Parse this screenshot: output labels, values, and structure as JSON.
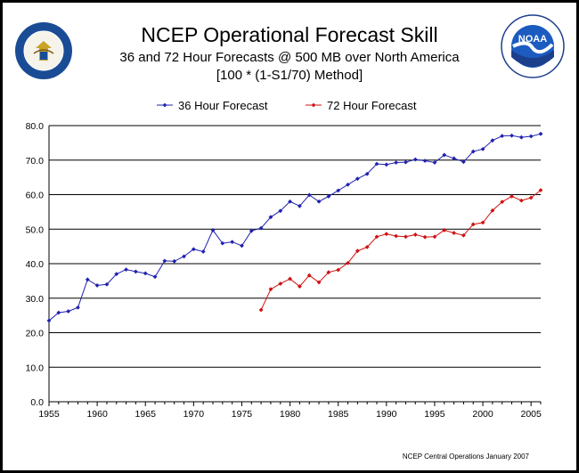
{
  "header": {
    "title": "NCEP Operational Forecast Skill",
    "subtitle": "36 and 72 Hour Forecasts @ 500 MB over North America",
    "method": "[100 * (1-S1/70) Method]"
  },
  "logos": {
    "left_text": "DEPARTMENT OF COMMERCE · UNITED STATES OF AMERICA",
    "left_icon": "commerce-seal-icon",
    "right_text": "NATIONAL OCEANIC AND ATMOSPHERIC ADMINISTRATION · U.S. DEPARTMENT OF COMMERCE",
    "right_abbrev": "NOAA",
    "right_icon": "noaa-logo-icon"
  },
  "footer": {
    "credit": "NCEP Central Operations January 2007"
  },
  "colors": {
    "series_36": "#2020b0",
    "series_72": "#d01010",
    "grid": "#000000"
  },
  "chart_data": {
    "type": "line",
    "title": "NCEP Operational Forecast Skill",
    "xlabel": "",
    "ylabel": "",
    "xlim": [
      1955,
      2006
    ],
    "ylim": [
      0,
      80
    ],
    "x_ticks": [
      "1955",
      "1960",
      "1965",
      "1970",
      "1975",
      "1980",
      "1985",
      "1990",
      "1995",
      "2000",
      "2005"
    ],
    "y_ticks": [
      "0.0",
      "10.0",
      "20.0",
      "30.0",
      "40.0",
      "50.0",
      "60.0",
      "70.0",
      "80.0"
    ],
    "grid": "horizontal",
    "legend_position": "top",
    "series": [
      {
        "name": "36 Hour Forecast",
        "color": "#2020b0",
        "x": [
          1955,
          1956,
          1957,
          1958,
          1959,
          1960,
          1961,
          1962,
          1963,
          1964,
          1965,
          1966,
          1967,
          1968,
          1969,
          1970,
          1971,
          1972,
          1973,
          1974,
          1975,
          1976,
          1977,
          1978,
          1979,
          1980,
          1981,
          1982,
          1983,
          1984,
          1985,
          1986,
          1987,
          1988,
          1989,
          1990,
          1991,
          1992,
          1993,
          1994,
          1995,
          1996,
          1997,
          1998,
          1999,
          2000,
          2001,
          2002,
          2003,
          2004,
          2005,
          2006
        ],
        "y": [
          23.5,
          25.8,
          26.2,
          27.3,
          35.4,
          33.7,
          34.0,
          37.0,
          38.3,
          37.7,
          37.2,
          36.2,
          40.8,
          40.7,
          42.1,
          44.2,
          43.5,
          49.7,
          45.9,
          46.3,
          45.2,
          49.5,
          50.3,
          53.5,
          55.3,
          58.0,
          56.7,
          59.9,
          58.0,
          59.5,
          61.2,
          62.9,
          64.6,
          66.0,
          68.9,
          68.7,
          69.3,
          69.4,
          70.2,
          69.8,
          69.3,
          71.5,
          70.5,
          69.5,
          72.5,
          73.2,
          75.7,
          77.0,
          77.1,
          76.6,
          76.9,
          77.6
        ]
      },
      {
        "name": "72 Hour Forecast",
        "color": "#d01010",
        "x": [
          1977,
          1978,
          1979,
          1980,
          1981,
          1982,
          1983,
          1984,
          1985,
          1986,
          1987,
          1988,
          1989,
          1990,
          1991,
          1992,
          1993,
          1994,
          1995,
          1996,
          1997,
          1998,
          1999,
          2000,
          2001,
          2002,
          2003,
          2004,
          2005,
          2006
        ],
        "y": [
          26.6,
          32.6,
          34.2,
          35.6,
          33.4,
          36.6,
          34.6,
          37.5,
          38.2,
          40.2,
          43.7,
          44.8,
          47.8,
          48.6,
          48.0,
          47.8,
          48.4,
          47.7,
          47.8,
          49.7,
          48.9,
          48.2,
          51.4,
          51.9,
          55.4,
          57.9,
          59.5,
          58.3,
          59.1,
          61.3
        ]
      }
    ]
  }
}
